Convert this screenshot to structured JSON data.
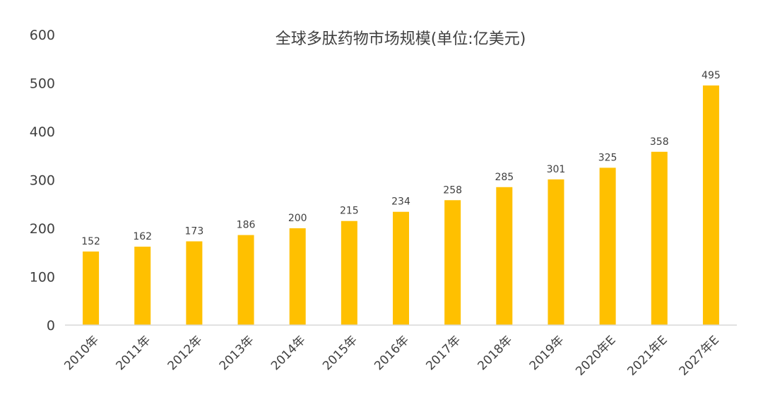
{
  "chart_data": {
    "type": "bar",
    "title": "全球多肽药物市场规模(单位:亿美元)",
    "categories": [
      "2010年",
      "2011年",
      "2012年",
      "2013年",
      "2014年",
      "2015年",
      "2016年",
      "2017年",
      "2018年",
      "2019年",
      "2020年E",
      "2021年E",
      "2027年E"
    ],
    "values": [
      152,
      162,
      173,
      186,
      200,
      215,
      234,
      258,
      285,
      301,
      325,
      358,
      495
    ],
    "ylim": [
      0,
      600
    ],
    "yticks": [
      0,
      100,
      200,
      300,
      400,
      500,
      600
    ],
    "grid": false,
    "legend": "none",
    "bar_color": "#FFC000"
  }
}
